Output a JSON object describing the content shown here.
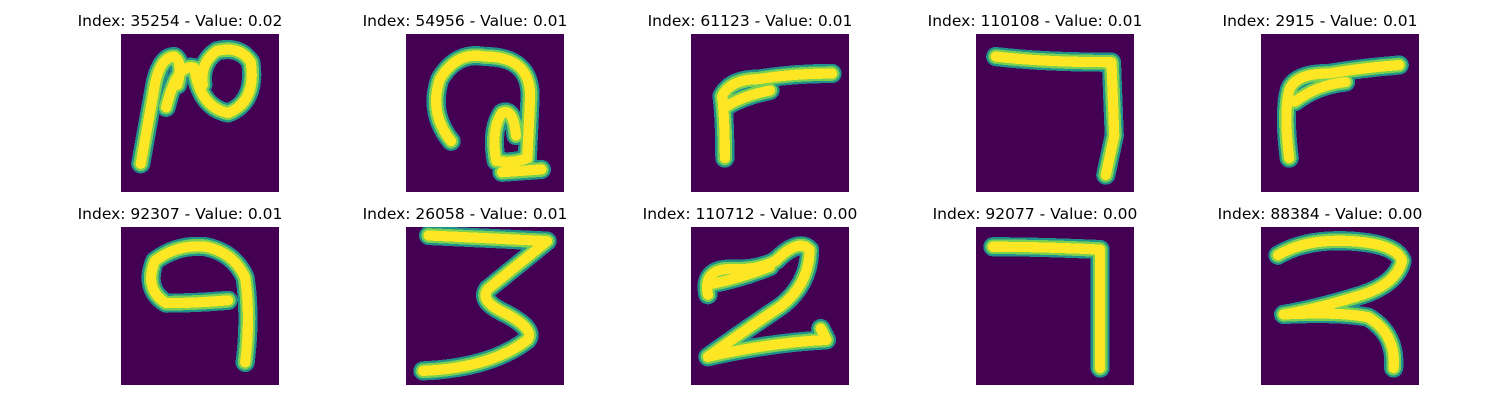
{
  "figure": {
    "background": "#440154",
    "stroke_colors": {
      "edge": "#21918c",
      "mid": "#7ad151",
      "core": "#fde725"
    },
    "panels": [
      {
        "title": "Index: 35254 - Value: 0.02",
        "glyph": "handwritten digit resembling 2 / N"
      },
      {
        "title": "Index: 54956 - Value: 0.01",
        "glyph": "handwritten curled glyph"
      },
      {
        "title": "Index: 61123 - Value: 0.01",
        "glyph": "handwritten digit resembling 7"
      },
      {
        "title": "Index: 110108 - Value: 0.01",
        "glyph": "handwritten digit 7"
      },
      {
        "title": "Index: 2915 - Value: 0.01",
        "glyph": "handwritten digit resembling 7"
      },
      {
        "title": "Index: 92307 - Value: 0.01",
        "glyph": "handwritten digit 9"
      },
      {
        "title": "Index: 26058 - Value: 0.01",
        "glyph": "handwritten digit 3"
      },
      {
        "title": "Index: 110712 - Value: 0.00",
        "glyph": "handwritten digit 2"
      },
      {
        "title": "Index: 92077 - Value: 0.00",
        "glyph": "handwritten digit 7"
      },
      {
        "title": "Index: 88384 - Value: 0.00",
        "glyph": "handwritten glyph resembling 3"
      }
    ]
  }
}
